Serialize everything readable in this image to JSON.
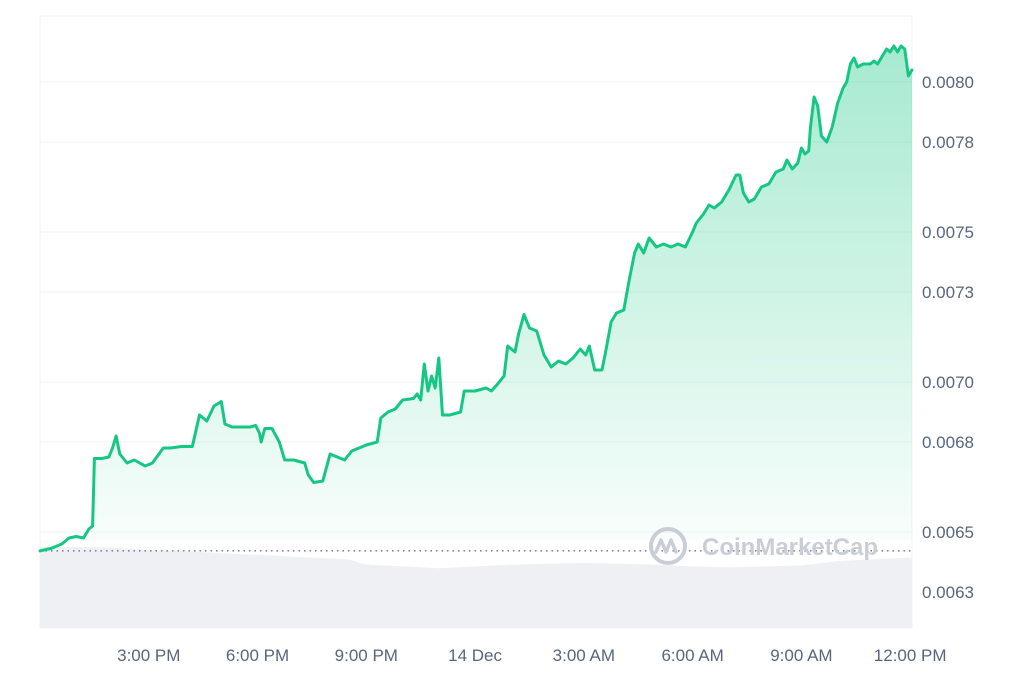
{
  "watermark": {
    "text": "CoinMarketCap",
    "icon": "coinmarketcap-logo-icon"
  },
  "colors": {
    "line": "#16c784",
    "fill_top": "#16c784",
    "grid": "#eff2f5",
    "volume": "#eef0f3",
    "text": "#58667e",
    "baseline": "#58667e"
  },
  "chart_data": {
    "type": "area",
    "title": "",
    "xlabel": "",
    "ylabel": "",
    "x_ticks": [
      "3:00 PM",
      "6:00 PM",
      "9:00 PM",
      "14 Dec",
      "3:00 AM",
      "6:00 AM",
      "9:00 AM",
      "12:00 PM"
    ],
    "x_tick_hours": [
      3,
      6,
      9,
      12,
      15,
      18,
      21,
      24
    ],
    "xlim_hours": [
      0,
      23.8
    ],
    "y_ticks": [
      "0.0063",
      "0.0065",
      "0.0068",
      "0.0070",
      "0.0073",
      "0.0075",
      "0.0078",
      "0.0080"
    ],
    "y_tick_values": [
      0.0063,
      0.0065,
      0.0068,
      0.007,
      0.0073,
      0.0075,
      0.0078,
      0.008
    ],
    "ylim": [
      0.00618,
      0.00822
    ],
    "baseline_value": 0.006437,
    "grid": true,
    "y_axis_position": "right",
    "series": [
      {
        "points": [
          [
            0.0,
            0.006437
          ],
          [
            0.3,
            0.006445
          ],
          [
            0.6,
            0.00646
          ],
          [
            0.8,
            0.00648
          ],
          [
            1.0,
            0.006485
          ],
          [
            1.2,
            0.00648
          ],
          [
            1.35,
            0.00651
          ],
          [
            1.45,
            0.00652
          ],
          [
            1.5,
            0.006745
          ],
          [
            1.7,
            0.006745
          ],
          [
            1.9,
            0.00675
          ],
          [
            2.0,
            0.00678
          ],
          [
            2.1,
            0.00682
          ],
          [
            2.2,
            0.00676
          ],
          [
            2.4,
            0.00673
          ],
          [
            2.6,
            0.00674
          ],
          [
            2.9,
            0.00672
          ],
          [
            3.1,
            0.00673
          ],
          [
            3.4,
            0.00678
          ],
          [
            3.6,
            0.00678
          ],
          [
            3.9,
            0.006785
          ],
          [
            4.2,
            0.006785
          ],
          [
            4.4,
            0.00689
          ],
          [
            4.6,
            0.00687
          ],
          [
            4.8,
            0.00692
          ],
          [
            5.0,
            0.006935
          ],
          [
            5.1,
            0.00686
          ],
          [
            5.3,
            0.00685
          ],
          [
            5.5,
            0.00685
          ],
          [
            5.8,
            0.00685
          ],
          [
            5.95,
            0.006855
          ],
          [
            6.05,
            0.00683
          ],
          [
            6.1,
            0.0068
          ],
          [
            6.2,
            0.006845
          ],
          [
            6.4,
            0.006845
          ],
          [
            6.6,
            0.0068
          ],
          [
            6.75,
            0.00674
          ],
          [
            7.0,
            0.00674
          ],
          [
            7.3,
            0.00673
          ],
          [
            7.4,
            0.00669
          ],
          [
            7.55,
            0.006665
          ],
          [
            7.8,
            0.00667
          ],
          [
            8.0,
            0.00676
          ],
          [
            8.2,
            0.00675
          ],
          [
            8.4,
            0.00674
          ],
          [
            8.6,
            0.00677
          ],
          [
            9.0,
            0.00679
          ],
          [
            9.3,
            0.0068
          ],
          [
            9.4,
            0.00688
          ],
          [
            9.6,
            0.0069
          ],
          [
            9.8,
            0.00691
          ],
          [
            10.0,
            0.00694
          ],
          [
            10.3,
            0.006945
          ],
          [
            10.4,
            0.00696
          ],
          [
            10.5,
            0.00694
          ],
          [
            10.6,
            0.00706
          ],
          [
            10.7,
            0.00697
          ],
          [
            10.8,
            0.00702
          ],
          [
            10.9,
            0.00698
          ],
          [
            11.0,
            0.00708
          ],
          [
            11.1,
            0.00689
          ],
          [
            11.3,
            0.00689
          ],
          [
            11.6,
            0.0069
          ],
          [
            11.7,
            0.00697
          ],
          [
            12.0,
            0.00697
          ],
          [
            12.3,
            0.00698
          ],
          [
            12.45,
            0.00697
          ],
          [
            12.6,
            0.00699
          ],
          [
            12.8,
            0.00702
          ],
          [
            12.9,
            0.00712
          ],
          [
            13.1,
            0.0071
          ],
          [
            13.2,
            0.00716
          ],
          [
            13.35,
            0.007225
          ],
          [
            13.5,
            0.00718
          ],
          [
            13.7,
            0.00717
          ],
          [
            13.9,
            0.00709
          ],
          [
            14.1,
            0.00705
          ],
          [
            14.3,
            0.00707
          ],
          [
            14.5,
            0.00706
          ],
          [
            14.7,
            0.00708
          ],
          [
            14.9,
            0.00711
          ],
          [
            15.05,
            0.00709
          ],
          [
            15.15,
            0.00712
          ],
          [
            15.3,
            0.00704
          ],
          [
            15.5,
            0.00704
          ],
          [
            15.6,
            0.0071
          ],
          [
            15.75,
            0.0072
          ],
          [
            15.9,
            0.00723
          ],
          [
            16.1,
            0.00724
          ],
          [
            16.25,
            0.00734
          ],
          [
            16.4,
            0.00743
          ],
          [
            16.5,
            0.00746
          ],
          [
            16.65,
            0.00743
          ],
          [
            16.8,
            0.00748
          ],
          [
            17.0,
            0.00745
          ],
          [
            17.2,
            0.00746
          ],
          [
            17.4,
            0.00745
          ],
          [
            17.6,
            0.00746
          ],
          [
            17.8,
            0.00745
          ],
          [
            18.0,
            0.0075
          ],
          [
            18.1,
            0.00753
          ],
          [
            18.3,
            0.00756
          ],
          [
            18.45,
            0.00759
          ],
          [
            18.6,
            0.00758
          ],
          [
            18.8,
            0.0076
          ],
          [
            19.0,
            0.00764
          ],
          [
            19.2,
            0.00769
          ],
          [
            19.3,
            0.00769
          ],
          [
            19.4,
            0.00763
          ],
          [
            19.55,
            0.0076
          ],
          [
            19.7,
            0.00761
          ],
          [
            19.9,
            0.00765
          ],
          [
            20.1,
            0.00766
          ],
          [
            20.3,
            0.0077
          ],
          [
            20.5,
            0.00771
          ],
          [
            20.6,
            0.00774
          ],
          [
            20.75,
            0.00771
          ],
          [
            20.9,
            0.00773
          ],
          [
            21.0,
            0.00778
          ],
          [
            21.1,
            0.00776
          ],
          [
            21.2,
            0.00777
          ],
          [
            21.25,
            0.00785
          ],
          [
            21.35,
            0.00795
          ],
          [
            21.45,
            0.00792
          ],
          [
            21.55,
            0.00782
          ],
          [
            21.7,
            0.0078
          ],
          [
            21.85,
            0.00785
          ],
          [
            22.0,
            0.00793
          ],
          [
            22.15,
            0.00798
          ],
          [
            22.25,
            0.008
          ],
          [
            22.35,
            0.00806
          ],
          [
            22.45,
            0.00808
          ],
          [
            22.55,
            0.00805
          ],
          [
            22.7,
            0.00806
          ],
          [
            22.9,
            0.00806
          ],
          [
            23.0,
            0.00807
          ],
          [
            23.1,
            0.00806
          ],
          [
            23.25,
            0.00809
          ],
          [
            23.35,
            0.00811
          ],
          [
            23.45,
            0.0081
          ],
          [
            23.55,
            0.00812
          ],
          [
            23.65,
            0.0081
          ],
          [
            23.75,
            0.00812
          ],
          [
            23.85,
            0.00811
          ],
          [
            23.95,
            0.00802
          ],
          [
            24.05,
            0.00804
          ]
        ]
      }
    ],
    "volume": [
      [
        0.0,
        0.92
      ],
      [
        1.5,
        0.92
      ],
      [
        2.5,
        0.9
      ],
      [
        3.5,
        0.88
      ],
      [
        4.5,
        0.86
      ],
      [
        5.5,
        0.84
      ],
      [
        6.5,
        0.82
      ],
      [
        7.5,
        0.8
      ],
      [
        8.5,
        0.78
      ],
      [
        9.0,
        0.72
      ],
      [
        10.0,
        0.7
      ],
      [
        11.0,
        0.68
      ],
      [
        12.0,
        0.7
      ],
      [
        13.0,
        0.72
      ],
      [
        14.0,
        0.73
      ],
      [
        15.0,
        0.74
      ],
      [
        16.0,
        0.73
      ],
      [
        17.0,
        0.72
      ],
      [
        18.0,
        0.7
      ],
      [
        19.0,
        0.69
      ],
      [
        20.0,
        0.7
      ],
      [
        21.0,
        0.71
      ],
      [
        22.0,
        0.76
      ],
      [
        23.0,
        0.78
      ],
      [
        24.05,
        0.8
      ]
    ]
  }
}
